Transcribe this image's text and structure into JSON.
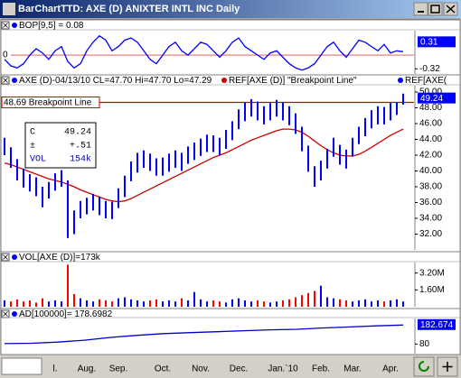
{
  "window_title": "BarChartTTD: AXE (D) ANIXTER INTL INC Daily",
  "chart_data": [
    {
      "type": "line",
      "header": "BOP[9,5] = 0.08",
      "color": "#0000ff",
      "values": [
        -0.1,
        -0.25,
        -0.3,
        -0.2,
        0,
        0.15,
        0.05,
        -0.1,
        0.1,
        0.2,
        -0.15,
        -0.3,
        -0.2,
        0.1,
        0.3,
        0.45,
        0.35,
        0.1,
        0.2,
        0.35,
        0.4,
        0.3,
        0.1,
        -0.1,
        -0.2,
        0,
        0.2,
        0.3,
        0.1,
        0,
        0.15,
        0.3,
        0.25,
        0.1,
        -0.05,
        0.1,
        0.3,
        0.4,
        0.2,
        0.1,
        0,
        -0.1,
        0.05,
        0.1,
        -0.05,
        -0.2,
        -0.3,
        -0.35,
        -0.3,
        -0.2,
        0,
        0.2,
        0.3,
        0.1,
        -0.05,
        0.15,
        0.35,
        0.3,
        0.2,
        0.1,
        0.25,
        0.05,
        0.1,
        0.08
      ],
      "ylim": [
        -0.44,
        0.57
      ],
      "yticks": [
        {
          "value": -0.32,
          "label": "-0.32"
        }
      ],
      "left_ticks": [
        0
      ],
      "last_marker": {
        "value": 0.31,
        "label": "0.31"
      }
    },
    {
      "type": "hlbar",
      "header": "AXE (D)-04/13/10 CL=47.70 Hi=47.70 Lo=47.29",
      "ref_labels": [
        "REF[AXE (D)] \"Breakpoint Line\"",
        "REF[AXE("
      ],
      "categories": [
        null,
        null,
        null,
        null,
        null,
        null,
        null,
        null,
        "l.",
        null,
        null,
        null,
        null,
        "Aug.",
        null,
        null,
        null,
        null,
        "Sep.",
        null,
        null,
        null,
        null,
        null,
        null,
        "Oct.",
        null,
        null,
        null,
        null,
        null,
        "Nov.",
        null,
        null,
        null,
        null,
        null,
        "Dec.",
        null,
        null,
        null,
        null,
        null,
        null,
        "Jan.`10",
        null,
        null,
        null,
        null,
        null,
        "Feb.",
        null,
        null,
        null,
        null,
        "Mar.",
        null,
        null,
        null,
        null,
        null,
        "Apr.",
        null,
        null
      ],
      "series": [
        {
          "name": "high",
          "color": "#0000ff",
          "values": [
            44.2,
            43,
            41.5,
            40.3,
            39.6,
            39.2,
            38,
            38.6,
            39.7,
            40.1,
            38.8,
            35,
            36.2,
            36.6,
            37.1,
            36.7,
            36.2,
            36.1,
            37.8,
            39.4,
            41.2,
            42.3,
            42.6,
            42.2,
            41.6,
            41.7,
            42.2,
            42.6,
            42.3,
            43.1,
            43.6,
            44.1,
            44.6,
            44.5,
            44.2,
            45.2,
            46.3,
            47.8,
            48.7,
            49.1,
            48.8,
            48.2,
            48.6,
            49,
            48.7,
            48.2,
            47.3,
            45.6,
            43.2,
            40.6,
            41.3,
            42.8,
            44.2,
            43.3,
            42.7,
            44.2,
            45.6,
            46.7,
            47.7,
            48.2,
            48.1,
            48.6,
            48.7,
            49.8
          ]
        },
        {
          "name": "low",
          "color": "#0000ff",
          "values": [
            42,
            40.4,
            38.8,
            37.9,
            37.4,
            36.8,
            35.4,
            36.5,
            37.5,
            38,
            31.5,
            32,
            34,
            34.5,
            35,
            34.4,
            34,
            33.9,
            35.3,
            36.7,
            38.7,
            39.8,
            40.4,
            40,
            39.4,
            39.4,
            39.9,
            40.4,
            40,
            40.9,
            41.4,
            41.9,
            42.4,
            42.4,
            42,
            42.8,
            43.9,
            45.3,
            46.3,
            46.9,
            46.4,
            45.9,
            46.4,
            46.9,
            46.4,
            45.8,
            44.7,
            42.5,
            39.9,
            38,
            38.8,
            40.3,
            41.8,
            40.8,
            40.3,
            41.8,
            43.4,
            44.4,
            45.4,
            45.9,
            45.9,
            46.4,
            47.1,
            48.4
          ]
        },
        {
          "name": "average",
          "color": "#cc0000",
          "values": [
            41,
            40.8,
            40.5,
            40.2,
            39.9,
            39.6,
            39.3,
            39,
            38.8,
            38.6,
            38.3,
            38,
            37.6,
            37.3,
            37,
            36.7,
            36.4,
            36.2,
            36.1,
            36.2,
            36.5,
            36.9,
            37.3,
            37.7,
            38.1,
            38.5,
            38.9,
            39.3,
            39.7,
            40.1,
            40.5,
            40.9,
            41.3,
            41.7,
            42,
            42.3,
            42.7,
            43.1,
            43.5,
            43.9,
            44.2,
            44.5,
            44.8,
            45.1,
            45.3,
            45.3,
            45.2,
            44.9,
            44.4,
            43.8,
            43.2,
            42.7,
            42.3,
            42,
            41.9,
            41.9,
            42.1,
            42.5,
            43,
            43.5,
            44,
            44.5,
            44.9,
            45.3
          ]
        }
      ],
      "ylim": [
        30,
        50.8
      ],
      "yticks": [
        {
          "value": 32,
          "label": "32.00"
        },
        {
          "value": 34,
          "label": "34.00"
        },
        {
          "value": 36,
          "label": "36.00"
        },
        {
          "value": 38,
          "label": "38.00"
        },
        {
          "value": 40,
          "label": "40.00"
        },
        {
          "value": 42,
          "label": "42.00"
        },
        {
          "value": 44,
          "label": "44.00"
        },
        {
          "value": 46,
          "label": "46.00"
        },
        {
          "value": 48,
          "label": "48.00"
        },
        {
          "value": 50,
          "label": "50.00"
        }
      ],
      "breakpoint": {
        "value": 48.69,
        "label": "48.69 Breakpoint Line",
        "color": "#cc0000"
      },
      "last_marker": {
        "value": 49.24,
        "label": "49.24"
      },
      "info_box": [
        [
          "C",
          "49.24"
        ],
        [
          "±",
          "+.51"
        ],
        [
          "VOL",
          "154k"
        ]
      ]
    },
    {
      "type": "bar",
      "header": "VOL[AXE (D)]=173k",
      "values": [
        0.6,
        0.5,
        0.7,
        0.5,
        0.6,
        0.4,
        0.8,
        0.5,
        0.6,
        0.5,
        4,
        1.2,
        0.8,
        0.6,
        0.5,
        0.7,
        0.6,
        0.5,
        0.8,
        0.9,
        0.7,
        0.6,
        0.5,
        0.6,
        0.7,
        0.5,
        0.6,
        0.5,
        0.8,
        0.6,
        1.4,
        0.7,
        0.5,
        0.6,
        0.5,
        0.4,
        0.7,
        0.8,
        0.6,
        0.5,
        0.6,
        0.5,
        0.4,
        0.5,
        0.6,
        0.7,
        0.9,
        1.1,
        1.3,
        1.5,
        2,
        0.9,
        0.8,
        0.7,
        0.6,
        0.5,
        0.6,
        0.7,
        0.5,
        0.6,
        0.5,
        0.6,
        0.7,
        0.5
      ],
      "ylim": [
        0,
        4.2
      ],
      "yticks": [
        {
          "value": 1.6,
          "label": "1.60M"
        },
        {
          "value": 3.2,
          "label": "3.20M"
        }
      ],
      "up_color": "#0000ff",
      "down_color": "#ff0000"
    },
    {
      "type": "line",
      "header": "AD[100000]=   178.6982",
      "color": "#0000cc",
      "values": [
        82,
        84,
        90,
        100,
        115,
        126,
        135,
        140,
        145,
        150,
        155,
        158,
        165,
        170,
        176,
        180
      ],
      "ylim": [
        29,
        215
      ],
      "yticks": [
        80
      ],
      "last_marker": {
        "value": 182.674,
        "label": "182.674"
      }
    }
  ]
}
